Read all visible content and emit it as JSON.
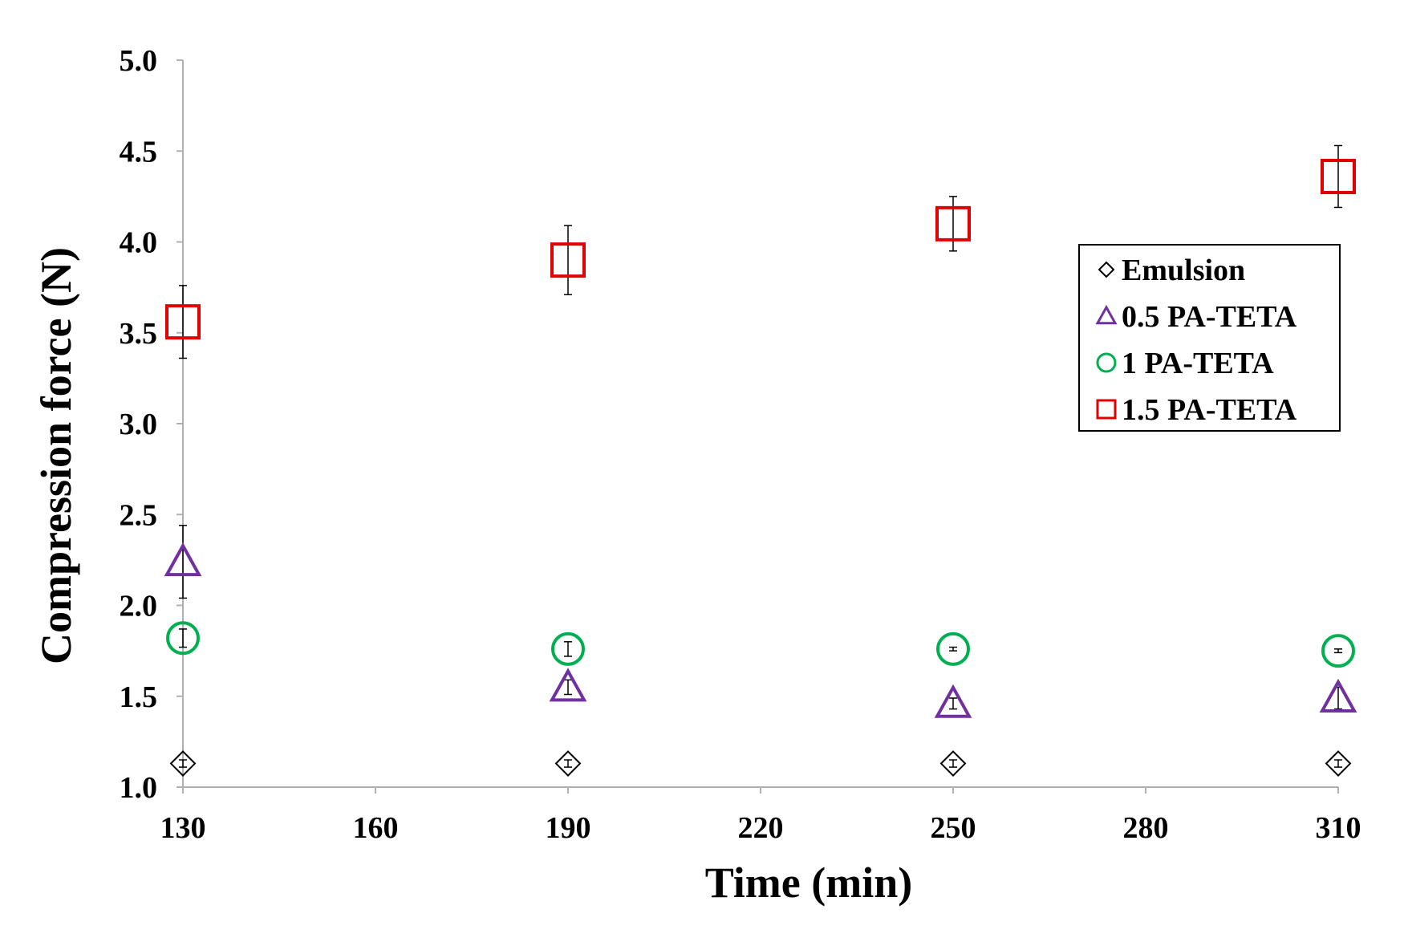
{
  "chart_data": {
    "type": "scatter",
    "xlabel": "Time (min)",
    "ylabel": "Compression force (N)",
    "xlim": [
      130,
      310
    ],
    "ylim": [
      1.0,
      5.0
    ],
    "xticks": [
      130,
      160,
      190,
      220,
      250,
      280,
      310
    ],
    "yticks": [
      1.0,
      1.5,
      2.0,
      2.5,
      3.0,
      3.5,
      4.0,
      4.5,
      5.0
    ],
    "ytick_labels": [
      "1.0",
      "1.5",
      "2.0",
      "2.5",
      "3.0",
      "3.5",
      "4.0",
      "4.5",
      "5.0"
    ],
    "grid": false,
    "legend_position": "right",
    "series": [
      {
        "name": "Emulsion",
        "marker": "diamond",
        "color": "#000000",
        "x": [
          130,
          190,
          250,
          310
        ],
        "y": [
          1.13,
          1.13,
          1.13,
          1.13
        ],
        "error": [
          0.02,
          0.02,
          0.02,
          0.02
        ]
      },
      {
        "name": "0.5 PA-TETA",
        "marker": "triangle",
        "color": "#7030A0",
        "x": [
          130,
          190,
          250,
          310
        ],
        "y": [
          2.24,
          1.55,
          1.46,
          1.49
        ],
        "error": [
          0.2,
          0.04,
          0.03,
          0.06
        ]
      },
      {
        "name": "1 PA-TETA",
        "marker": "circle",
        "color": "#00B050",
        "x": [
          130,
          190,
          250,
          310
        ],
        "y": [
          1.82,
          1.76,
          1.76,
          1.75
        ],
        "error": [
          0.05,
          0.04,
          0.01,
          0.01
        ]
      },
      {
        "name": "1.5 PA-TETA",
        "marker": "square",
        "color": "#E00000",
        "x": [
          130,
          190,
          250,
          310
        ],
        "y": [
          3.56,
          3.9,
          4.1,
          4.36
        ],
        "error": [
          0.2,
          0.19,
          0.15,
          0.17
        ]
      }
    ]
  }
}
